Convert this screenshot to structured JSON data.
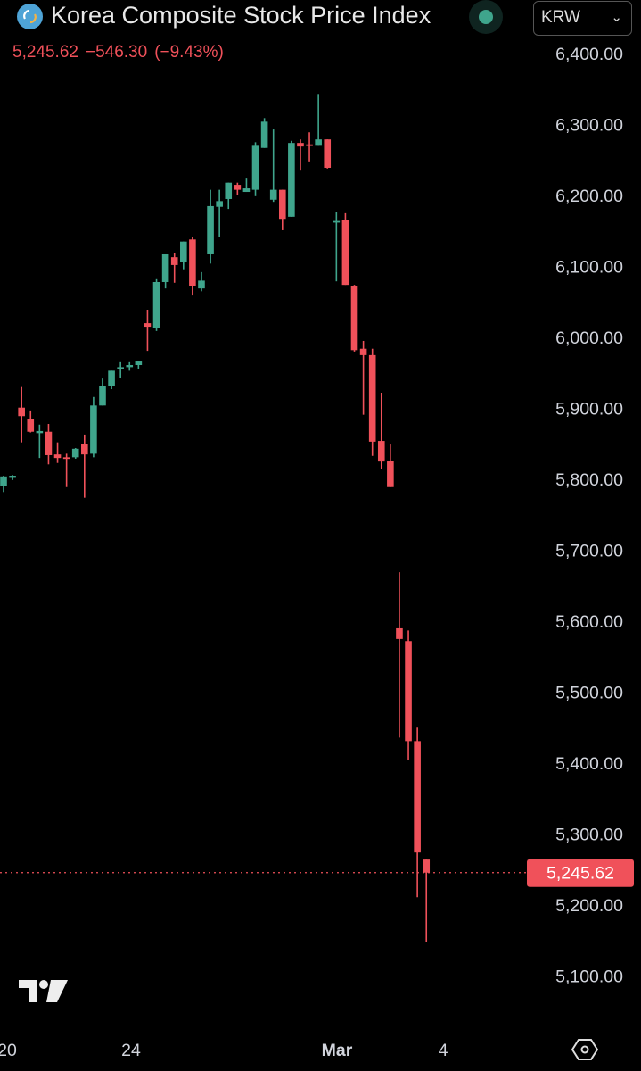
{
  "header": {
    "title": "Korea Composite Stock Price Index",
    "currency": "KRW",
    "last_price": "5,245.62",
    "change": "−546.30",
    "change_pct": "(−9.43%)",
    "icons": [
      "symbol-logo-icon",
      "market-status-icon",
      "chevron-down-icon",
      "tradingview-logo-icon",
      "settings-icon"
    ]
  },
  "colors": {
    "up": "#3fa58c",
    "down": "#f0515a",
    "background": "#000000",
    "axis_text": "#d1d4dc"
  },
  "chart_data": {
    "type": "candlestick",
    "y_range": [
      5050,
      6420
    ],
    "y_ticks": [
      "6,400.00",
      "6,300.00",
      "6,200.00",
      "6,100.00",
      "6,000.00",
      "5,900.00",
      "5,800.00",
      "5,700.00",
      "5,600.00",
      "5,500.00",
      "5,400.00",
      "5,300.00",
      "5,200.00",
      "5,100.00"
    ],
    "x_ticks": [
      "20",
      "24",
      "Mar",
      "4"
    ],
    "last_price_label": "5,245.62",
    "grid": false,
    "candles": [
      [
        5791,
        5805,
        5782,
        5804
      ],
      [
        5802,
        5806,
        5799,
        5805
      ],
      [
        5901,
        5930,
        5852,
        5889
      ],
      [
        5885,
        5897,
        5866,
        5867
      ],
      [
        5865,
        5877,
        5830,
        5868
      ],
      [
        5867,
        5878,
        5821,
        5834
      ],
      [
        5835,
        5852,
        5823,
        5830
      ],
      [
        5831,
        5836,
        5789,
        5830
      ],
      [
        5831,
        5844,
        5829,
        5843
      ],
      [
        5850,
        5863,
        5774,
        5835
      ],
      [
        5836,
        5916,
        5831,
        5904
      ],
      [
        5904,
        5942,
        5904,
        5932
      ],
      [
        5932,
        5953,
        5927,
        5953
      ],
      [
        5955,
        5965,
        5943,
        5958
      ],
      [
        5958,
        5965,
        5953,
        5961
      ],
      [
        5961,
        5966,
        5956,
        5966
      ],
      [
        6020,
        6039,
        5981,
        6015
      ],
      [
        6013,
        6082,
        6009,
        6078
      ],
      [
        6078,
        6117,
        6069,
        6117
      ],
      [
        6113,
        6119,
        6077,
        6102
      ],
      [
        6106,
        6135,
        6096,
        6135
      ],
      [
        6138,
        6141,
        6059,
        6072
      ],
      [
        6069,
        6092,
        6065,
        6080
      ],
      [
        6117,
        6208,
        6104,
        6185
      ],
      [
        6184,
        6208,
        6142,
        6192
      ],
      [
        6195,
        6218,
        6181,
        6218
      ],
      [
        6215,
        6218,
        6200,
        6208
      ],
      [
        6205,
        6225,
        6205,
        6210
      ],
      [
        6208,
        6275,
        6199,
        6270
      ],
      [
        6267,
        6309,
        6267,
        6304
      ],
      [
        6194,
        6293,
        6191,
        6208
      ],
      [
        6208,
        6208,
        6151,
        6167
      ],
      [
        6170,
        6277,
        6170,
        6274
      ],
      [
        6274,
        6279,
        6235,
        6269
      ],
      [
        6272,
        6289,
        6248,
        6270
      ],
      [
        6270,
        6343,
        6270,
        6279
      ],
      [
        6279,
        6279,
        6238,
        6239
      ],
      [
        6162,
        6177,
        6079,
        6164
      ],
      [
        6166,
        6175,
        6074,
        6074
      ],
      [
        6072,
        6074,
        5980,
        5982
      ],
      [
        5984,
        5995,
        5891,
        5975
      ],
      [
        5975,
        5984,
        5833,
        5853
      ],
      [
        5854,
        5922,
        5814,
        5825
      ],
      [
        5826,
        5849,
        5789,
        5789
      ],
      [
        5590,
        5669,
        5436,
        5575
      ],
      [
        5572,
        5587,
        5404,
        5431
      ],
      [
        5431,
        5450,
        5211,
        5274
      ],
      [
        5264,
        5264,
        5148,
        5245.62
      ]
    ]
  }
}
